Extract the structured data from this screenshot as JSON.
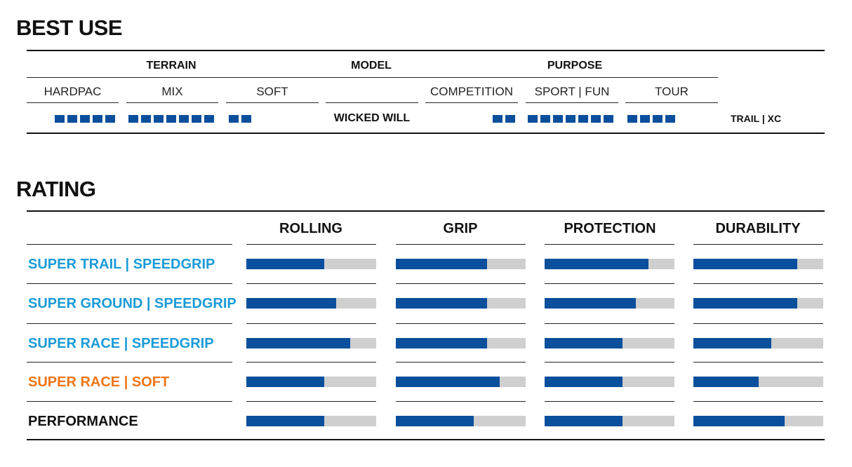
{
  "best_use": {
    "title": "BEST USE",
    "groups": {
      "terrain": "TERRAIN",
      "model": "MODEL",
      "purpose": "PURPOSE"
    },
    "columns": [
      "HARDPAC",
      "MIX",
      "SOFT",
      "",
      "COMPETITION",
      "SPORT | FUN",
      "TOUR"
    ],
    "segments": {
      "hardpac": 5,
      "mix": 7,
      "soft": 2,
      "competition": 2,
      "sport_fun": 7,
      "tour": 4
    },
    "model_name": "WICKED WILL",
    "category": "TRAIL | XC"
  },
  "rating": {
    "title": "RATING",
    "columns": [
      "ROLLING",
      "GRIP",
      "PROTECTION",
      "DURABILITY"
    ],
    "rows": [
      {
        "name": "SUPER TRAIL | SPEEDGRIP",
        "color": "#1a9bd7",
        "values": [
          0.6,
          0.7,
          0.8,
          0.8
        ]
      },
      {
        "name": "SUPER GROUND | SPEEDGRIP",
        "color": "#1a9bd7",
        "values": [
          0.69,
          0.7,
          0.7,
          0.8
        ]
      },
      {
        "name": "SUPER RACE | SPEEDGRIP",
        "color": "#1a9bd7",
        "values": [
          0.8,
          0.7,
          0.6,
          0.6
        ]
      },
      {
        "name": "SUPER RACE | SOFT",
        "color": "#f07516",
        "values": [
          0.6,
          0.8,
          0.6,
          0.5
        ]
      },
      {
        "name": "PERFORMANCE",
        "color": "#111111",
        "values": [
          0.6,
          0.6,
          0.6,
          0.7
        ]
      }
    ]
  },
  "colors": {
    "bar_fill": "#0a4f9c",
    "bar_track": "#cfcfcf"
  }
}
